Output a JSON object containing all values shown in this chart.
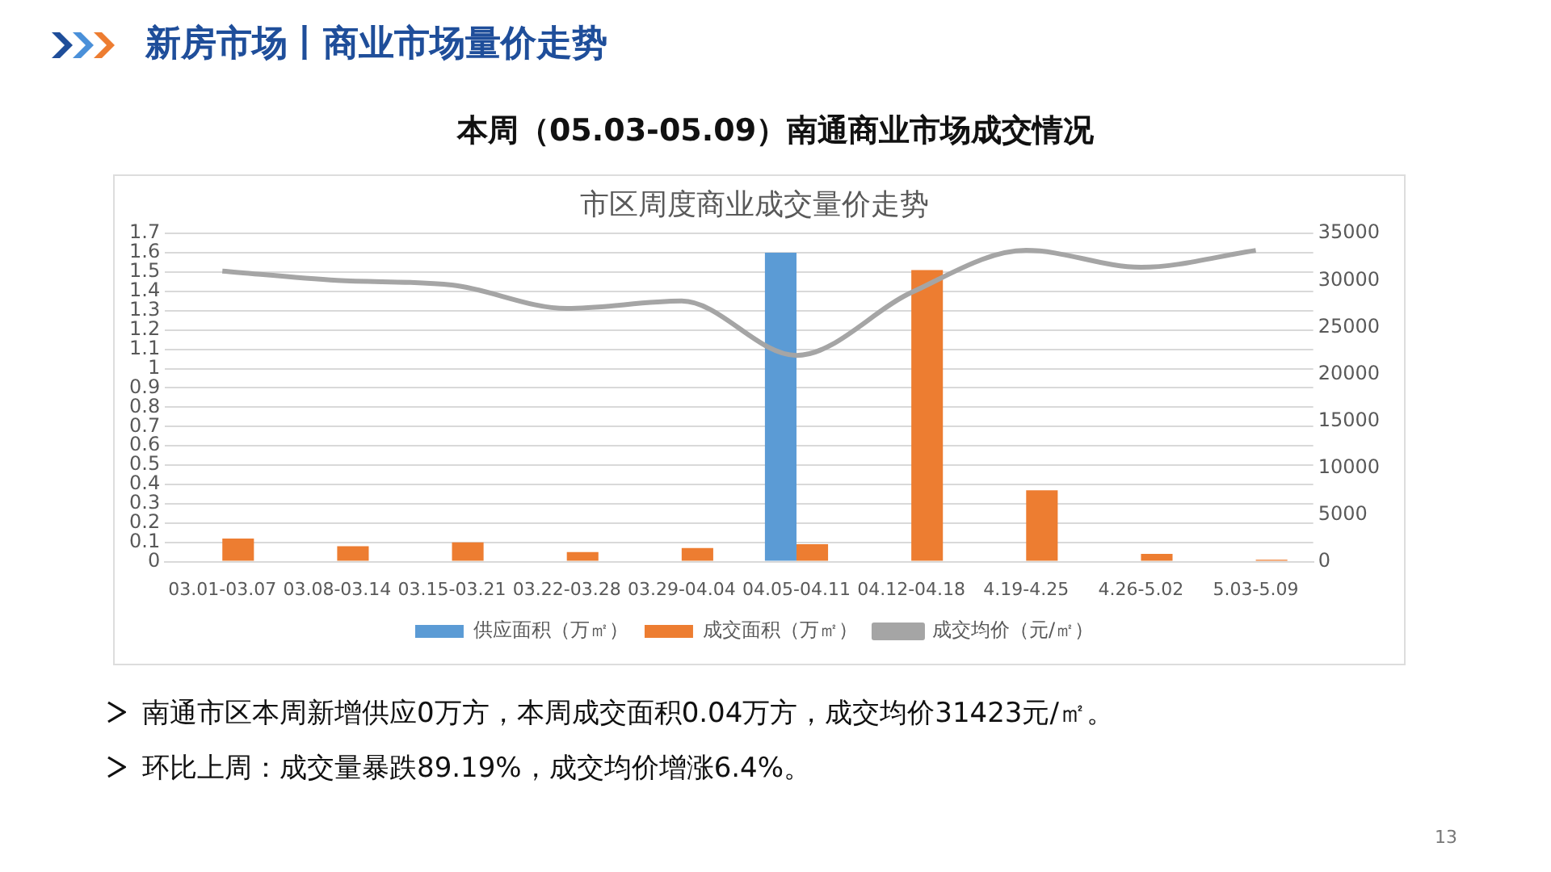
{
  "chart_data": {
    "type": "bar",
    "title": "市区周度商业成交量价走势",
    "subtitle": "本周（05.03-05.09）南通商业市场成交情况",
    "categories": [
      "03.01-03.07",
      "03.08-03.14",
      "03.15-03.21",
      "03.22-03.28",
      "03.29-04.04",
      "04.05-04.11",
      "04.12-04.18",
      "4.19-4.25",
      "4.26-5.02",
      "5.03-5.09"
    ],
    "series": [
      {
        "name": "供应面积（万㎡）",
        "color": "#5b9bd5",
        "values": [
          0,
          0,
          0,
          0,
          0,
          1.6,
          0,
          0,
          0,
          0
        ]
      },
      {
        "name": "成交面积（万㎡）",
        "color": "#ed7d31",
        "values": [
          0.12,
          0.08,
          0.1,
          0.05,
          0.07,
          0.09,
          1.51,
          0.37,
          0.04,
          0.01
        ]
      },
      {
        "name": "成交均价（元/㎡）",
        "type": "line",
        "axis": "y2",
        "color": "#a5a5a5",
        "values": [
          31000,
          30000,
          29500,
          27000,
          27800,
          22000,
          28700,
          33200,
          31400,
          33200
        ]
      }
    ],
    "ylim": [
      0,
      1.7
    ],
    "yticks": [
      0,
      0.1,
      0.2,
      0.3,
      0.4,
      0.5,
      0.6,
      0.7,
      0.8,
      0.9,
      1,
      1.1,
      1.2,
      1.3,
      1.4,
      1.5,
      1.6,
      1.7
    ],
    "y2lim": [
      0,
      35000
    ],
    "y2ticks": [
      0,
      5000,
      10000,
      15000,
      20000,
      25000,
      30000,
      35000
    ],
    "grid": "y",
    "legend": "bottom",
    "marker": "none",
    "annotations": [
      "新房市场丨商业市场量价走势",
      "南通市区本周新增供应0万方，本周成交面积0.04万方，成交均价31423元/㎡。",
      "环比上周：成交量暴跌89.19%，成交均价增涨6.4%。",
      "13"
    ]
  }
}
